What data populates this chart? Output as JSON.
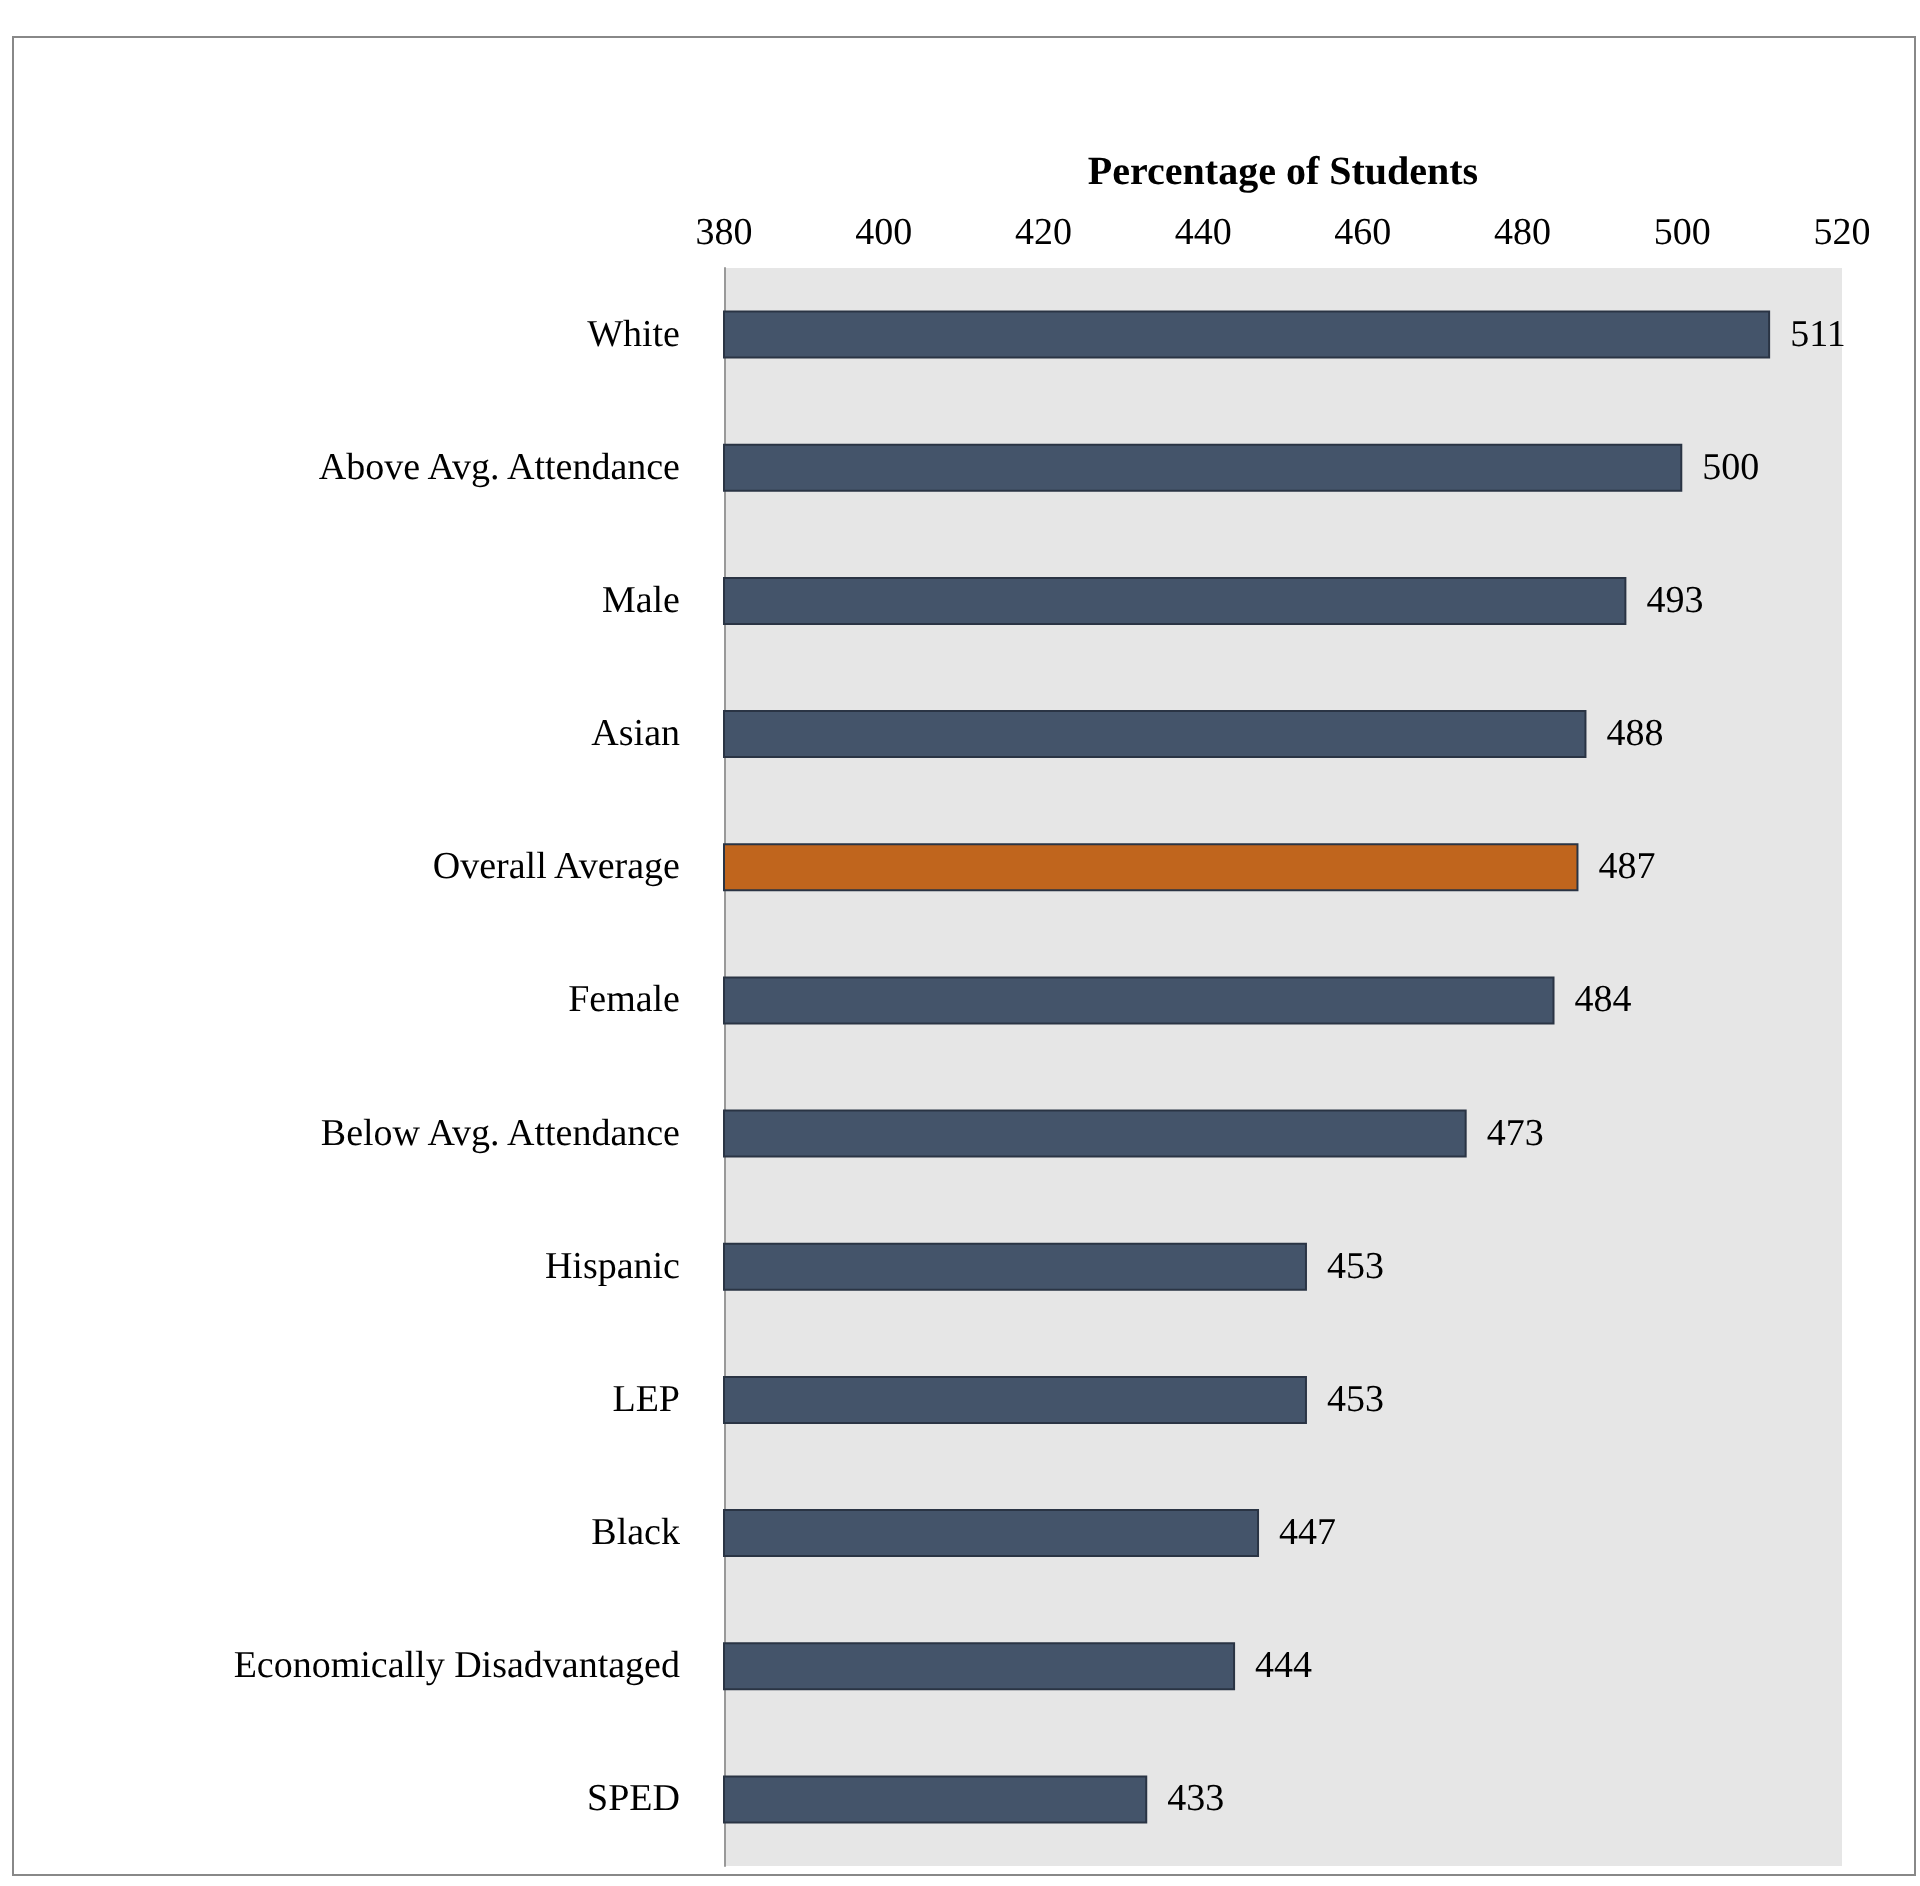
{
  "chart_data": {
    "type": "bar",
    "orientation": "horizontal",
    "xlabel": "Percentage of Students",
    "categories": [
      "White",
      "Above Avg. Attendance",
      "Male",
      "Asian",
      "Overall Average",
      "Female",
      "Below Avg. Attendance",
      "Hispanic",
      "LEP",
      "Black",
      "Economically Disadvantaged",
      "SPED"
    ],
    "values": [
      511,
      500,
      493,
      488,
      487,
      484,
      473,
      453,
      453,
      447,
      444,
      433
    ],
    "colors": [
      "#44546a",
      "#44546a",
      "#44546a",
      "#44546a",
      "#c0651d",
      "#44546a",
      "#44546a",
      "#44546a",
      "#44546a",
      "#44546a",
      "#44546a",
      "#44546a"
    ],
    "xlim": [
      380,
      520
    ],
    "xticks": [
      380,
      400,
      420,
      440,
      460,
      480,
      500,
      520
    ],
    "data_labels": true,
    "grid": false
  }
}
